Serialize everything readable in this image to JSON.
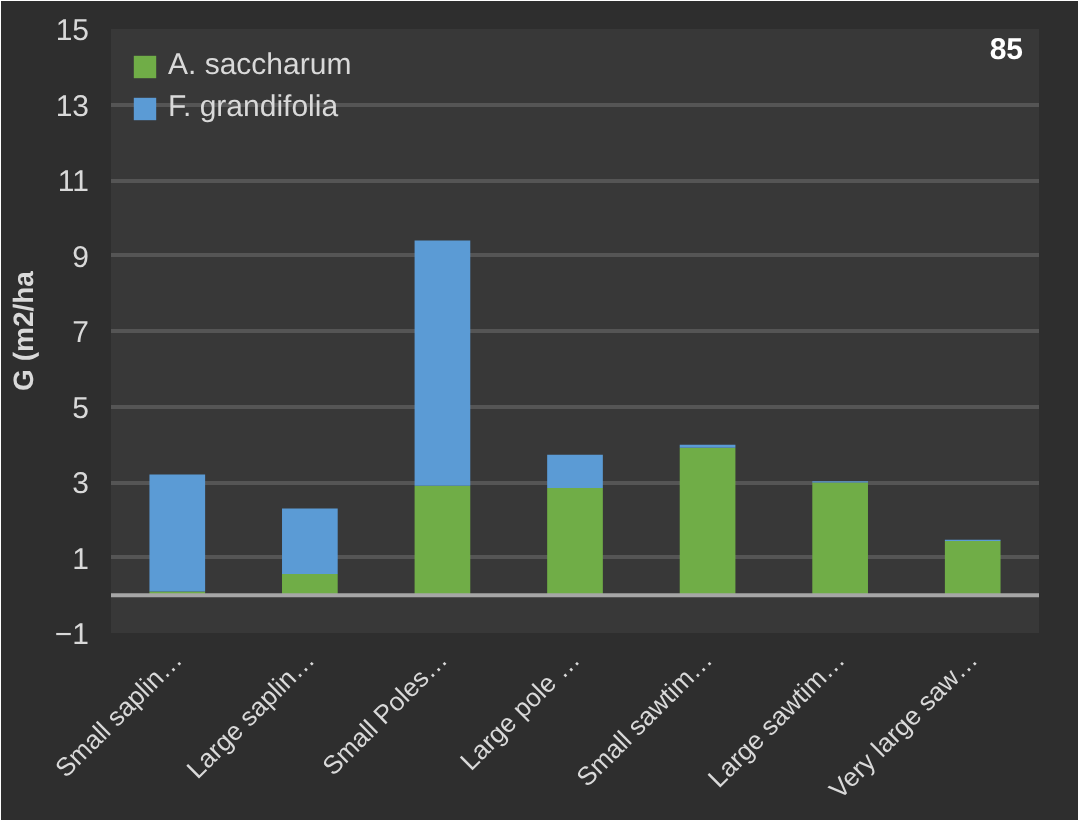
{
  "chart_data": {
    "type": "bar",
    "stacked": true,
    "ylabel": "G (m2/ha",
    "categories": [
      "Small saplin…",
      "Large saplin…",
      "Small Poles…",
      "Large pole …",
      "Small sawtim…",
      "Large sawtim…",
      "Very large saw…"
    ],
    "series": [
      {
        "name": "A. saccharum",
        "color": "#70ad47",
        "values": [
          0.1,
          0.56,
          2.9,
          2.84,
          3.91,
          2.99,
          1.44
        ]
      },
      {
        "name": "F. grandifolia",
        "color": "#5b9bd5",
        "values": [
          3.1,
          1.74,
          6.5,
          0.88,
          0.08,
          0.03,
          0.03
        ]
      }
    ],
    "ylim": [
      -1,
      15
    ],
    "yticks": [
      -1,
      1,
      3,
      5,
      7,
      9,
      11,
      13,
      15
    ],
    "grid": "y",
    "legend": "top left",
    "annotations": [
      "85"
    ]
  }
}
